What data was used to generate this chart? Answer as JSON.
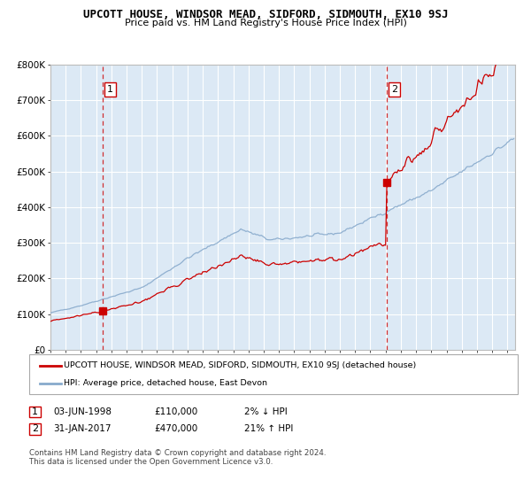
{
  "title": "UPCOTT HOUSE, WINDSOR MEAD, SIDFORD, SIDMOUTH, EX10 9SJ",
  "subtitle": "Price paid vs. HM Land Registry's House Price Index (HPI)",
  "legend_line1": "UPCOTT HOUSE, WINDSOR MEAD, SIDFORD, SIDMOUTH, EX10 9SJ (detached house)",
  "legend_line2": "HPI: Average price, detached house, East Devon",
  "transaction1_date": "03-JUN-1998",
  "transaction1_price": "£110,000",
  "transaction1_hpi": "2% ↓ HPI",
  "transaction2_date": "31-JAN-2017",
  "transaction2_price": "£470,000",
  "transaction2_hpi": "21% ↑ HPI",
  "footer": "Contains HM Land Registry data © Crown copyright and database right 2024.\nThis data is licensed under the Open Government Licence v3.0.",
  "ylim": [
    0,
    800000
  ],
  "yticks": [
    0,
    100000,
    200000,
    300000,
    400000,
    500000,
    600000,
    700000,
    800000
  ],
  "ytick_labels": [
    "£0",
    "£100K",
    "£200K",
    "£300K",
    "£400K",
    "£500K",
    "£600K",
    "£700K",
    "£800K"
  ],
  "background_color": "#dce9f5",
  "line_color_property": "#cc0000",
  "line_color_hpi": "#88aacc",
  "marker_color": "#cc0000",
  "vline_color": "#cc0000",
  "grid_color": "#ffffff",
  "transaction1_year": 1998.42,
  "transaction1_price_val": 110000,
  "transaction2_year": 2017.08,
  "transaction2_price_val": 470000
}
